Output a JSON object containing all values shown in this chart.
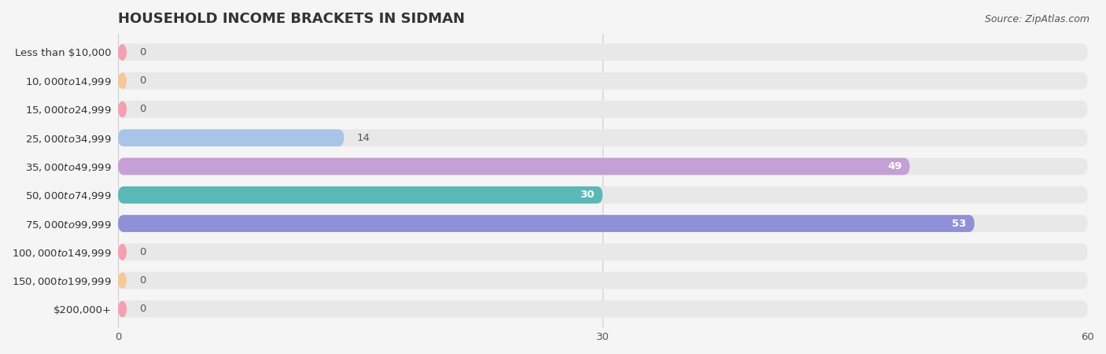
{
  "title": "HOUSEHOLD INCOME BRACKETS IN SIDMAN",
  "source": "Source: ZipAtlas.com",
  "categories": [
    "Less than $10,000",
    "$10,000 to $14,999",
    "$15,000 to $24,999",
    "$25,000 to $34,999",
    "$35,000 to $49,999",
    "$50,000 to $74,999",
    "$75,000 to $99,999",
    "$100,000 to $149,999",
    "$150,000 to $199,999",
    "$200,000+"
  ],
  "values": [
    0,
    0,
    0,
    14,
    49,
    30,
    53,
    0,
    0,
    0
  ],
  "bar_colors": [
    "#f4a0b0",
    "#f5c897",
    "#f4a0b0",
    "#a8c4e8",
    "#c4a0d4",
    "#5ab8b8",
    "#9090d8",
    "#f4a0b0",
    "#f5c897",
    "#f4a0b0"
  ],
  "row_bg_color": "#e8e8e8",
  "background_color": "#f5f5f5",
  "xlim": [
    0,
    60
  ],
  "xticks": [
    0,
    30,
    60
  ],
  "title_fontsize": 13,
  "label_fontsize": 9.5,
  "tick_fontsize": 9.5,
  "source_fontsize": 9,
  "value_label_color_inside": "white",
  "value_label_color_outside": "#555555",
  "grid_color": "#cccccc",
  "title_color": "#333333",
  "label_color": "#333333"
}
